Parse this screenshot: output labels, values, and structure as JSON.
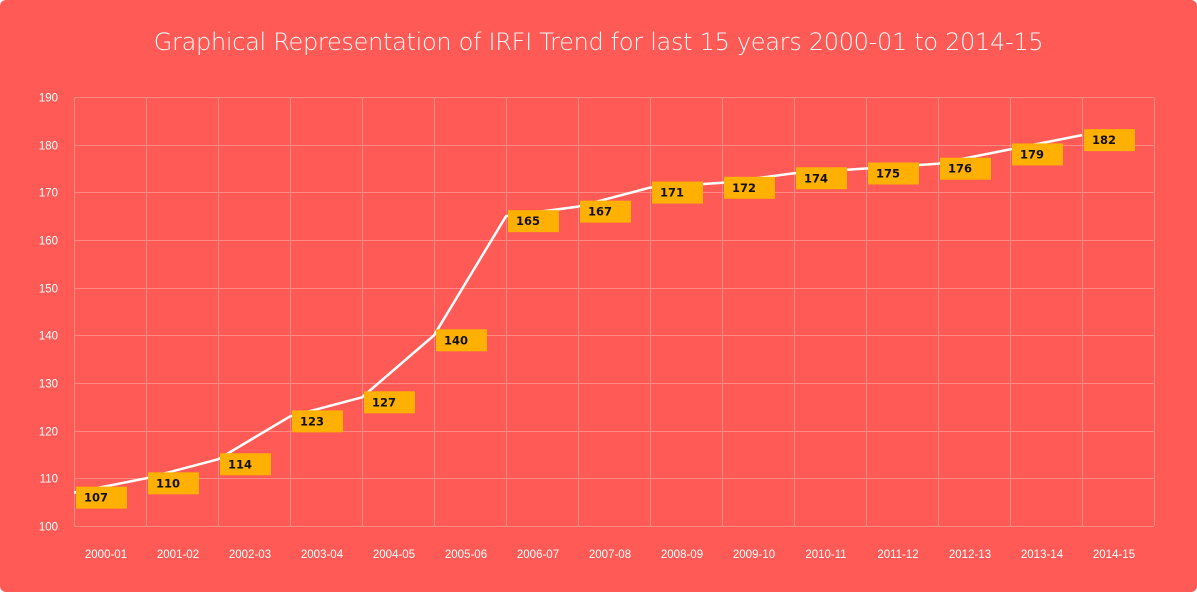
{
  "chart_data": {
    "type": "line",
    "title": "Graphical Representation of IRFI Trend for last 15 years 2000-01 to 2014-15",
    "xlabel": "",
    "ylabel": "",
    "categories": [
      "2000-01",
      "2001-02",
      "2002-03",
      "2003-04",
      "2004-05",
      "2005-06",
      "2006-07",
      "2007-08",
      "2008-09",
      "2009-10",
      "2010-11",
      "2011-12",
      "2012-13",
      "2013-14",
      "2014-15"
    ],
    "series": [
      {
        "name": "IRFI",
        "values": [
          107,
          110,
          114,
          123,
          127,
          140,
          165,
          167,
          171,
          172,
          174,
          175,
          176,
          179,
          182
        ],
        "color": "#FFFFFF",
        "label_color": "#FFB000"
      }
    ],
    "ylim": [
      100,
      190
    ],
    "yticks": [
      100,
      110,
      120,
      130,
      140,
      150,
      160,
      170,
      180,
      190
    ],
    "grid": true,
    "data_labels": true,
    "background_color": "#FF5A55"
  }
}
